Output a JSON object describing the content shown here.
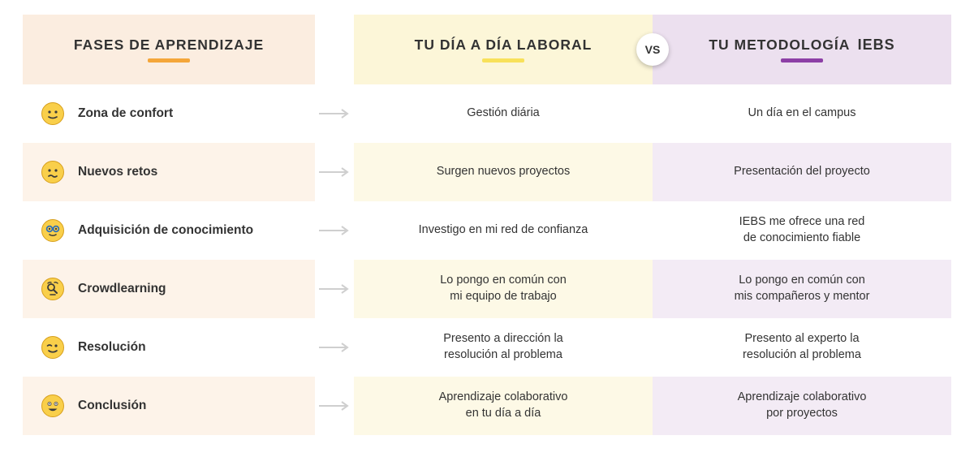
{
  "headers": {
    "phases": {
      "label": "FASES DE APRENDIZAJE",
      "bg": "#fbede0",
      "underline": "#f4a63a"
    },
    "work": {
      "label": "TU DÍA A DÍA LABORAL",
      "bg": "#fcf6d8",
      "underline": "#f8e15a"
    },
    "iebs": {
      "label_prefix": "TU METODOLOGÍA ",
      "logo": "IEBS",
      "bg": "#ece0ef",
      "underline": "#8d3fa6"
    }
  },
  "vs_label": "VS",
  "colors": {
    "phases_alt": [
      "#ffffff",
      "#fdf3e9"
    ],
    "work_alt": [
      "#ffffff",
      "#fdf9e6"
    ],
    "iebs_alt": [
      "#ffffff",
      "#f3ebf5"
    ],
    "emoji_face": "#f9cf4a",
    "emoji_stroke": "#d79f1d",
    "emoji_feature": "#3a3a3a",
    "glasses_blue": "#2d6fb7"
  },
  "rows": [
    {
      "phase": "Zona de confort",
      "emoji": "content",
      "work": "Gestión diária",
      "iebs": "Un día en el campus"
    },
    {
      "phase": "Nuevos retos",
      "emoji": "uneasy",
      "work": "Surgen nuevos proyectos",
      "iebs": "Presentación del proyecto"
    },
    {
      "phase": "Adquisición de conocimiento",
      "emoji": "nerd",
      "work": "Investigo en mi red de confianza",
      "iebs": "IEBS me ofrece una red\nde conocimiento fiable"
    },
    {
      "phase": "Crowdlearning",
      "emoji": "search",
      "work": "Lo pongo en común con\nmi equipo de trabajo",
      "iebs": "Lo pongo en común con\nmis compañeros y mentor"
    },
    {
      "phase": "Resolución",
      "emoji": "wink",
      "work": "Presento a dirección la\nresolución al problema",
      "iebs": "Presento al experto la\nresolución al problema"
    },
    {
      "phase": "Conclusión",
      "emoji": "excited",
      "work": "Aprendizaje colaborativo\nen tu día a día",
      "iebs": "Aprendizaje colaborativo\npor proyectos"
    }
  ]
}
